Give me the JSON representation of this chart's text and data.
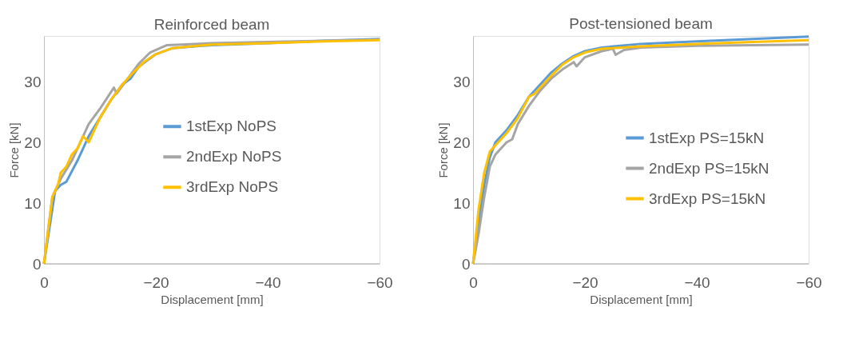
{
  "chart_data": [
    {
      "type": "line",
      "title": "Reinforced beam",
      "xlabel": "Displacement [mm]",
      "ylabel": "Force [kN]",
      "xlim": [
        0,
        -60
      ],
      "xticks": [
        0,
        -20,
        -40,
        -60
      ],
      "ylim": [
        0,
        37.5
      ],
      "yticks": [
        0,
        10,
        20,
        30
      ],
      "grid": false,
      "legend": "center",
      "marker": "none",
      "line_style": "solid",
      "series": [
        {
          "name": "1stExp NoPS",
          "color": "#5b9bd5",
          "x": [
            0,
            -2,
            -3,
            -4,
            -6,
            -8,
            -10,
            -12,
            -14,
            -15.5,
            -17,
            -20,
            -23,
            -30,
            -40,
            -50,
            -60
          ],
          "values": [
            0,
            12,
            13,
            13.5,
            17,
            21,
            24,
            27,
            29.5,
            30.5,
            32.5,
            34.5,
            35.5,
            36,
            36.3,
            36.7,
            37
          ]
        },
        {
          "name": "2ndExp NoPS",
          "color": "#a5a5a5",
          "x": [
            0,
            -1.5,
            -3,
            -5,
            -7,
            -8,
            -10,
            -12.5,
            -13,
            -15,
            -17,
            -19,
            -22,
            -30,
            -40,
            -60
          ],
          "values": [
            0,
            11,
            14,
            17,
            21,
            23,
            25.5,
            29,
            28,
            30.5,
            33,
            34.8,
            36,
            36.3,
            36.5,
            36.9
          ]
        },
        {
          "name": "3rdExp NoPS",
          "color": "#ffc000",
          "x": [
            0,
            -1.5,
            -2.5,
            -3,
            -4,
            -5,
            -6,
            -7,
            -8,
            -10,
            -12,
            -14,
            -16,
            -18,
            -20,
            -23,
            -30,
            -40,
            -50,
            -60
          ],
          "values": [
            0,
            11,
            13,
            15,
            16,
            18,
            19,
            21,
            20,
            24,
            27,
            29.5,
            31.5,
            33.3,
            34.5,
            35.5,
            36.1,
            36.3,
            36.6,
            36.8
          ]
        }
      ]
    },
    {
      "type": "line",
      "title": "Post-tensioned beam",
      "xlabel": "Displacement [mm]",
      "ylabel": "Force [kN]",
      "xlim": [
        0,
        -60
      ],
      "xticks": [
        0,
        -20,
        -40,
        -60
      ],
      "ylim": [
        0,
        37.5
      ],
      "yticks": [
        0,
        10,
        20,
        30
      ],
      "grid": false,
      "legend": "center right",
      "marker": "none",
      "line_style": "solid",
      "series": [
        {
          "name": "1stExp PS=15kN",
          "color": "#5b9bd5",
          "x": [
            0,
            -1,
            -2,
            -3,
            -4,
            -6,
            -8,
            -10,
            -12,
            -14,
            -16,
            -18,
            -20,
            -23,
            -30,
            -40,
            -50,
            -60
          ],
          "values": [
            0,
            7,
            13,
            17.5,
            20,
            22,
            24.5,
            27.5,
            29.5,
            31.5,
            33,
            34.2,
            35,
            35.6,
            36.2,
            36.6,
            37,
            37.4
          ]
        },
        {
          "name": "2ndExp PS=15kN",
          "color": "#a5a5a5",
          "x": [
            0,
            -1,
            -2,
            -3,
            -4,
            -6,
            -7,
            -8,
            -10,
            -12,
            -14,
            -16,
            -18,
            -18.5,
            -20,
            -23,
            -25,
            -25.5,
            -27,
            -30,
            -40,
            -50,
            -60
          ],
          "values": [
            0,
            5,
            11,
            16,
            18,
            20,
            20.5,
            23,
            26,
            28.5,
            30.5,
            32,
            33.2,
            32.5,
            34,
            35,
            35.4,
            34.4,
            35.2,
            35.6,
            35.9,
            36,
            36.1
          ]
        },
        {
          "name": "3rdExp PS=15kN",
          "color": "#ffc000",
          "x": [
            0,
            -1,
            -2,
            -3,
            -4,
            -6,
            -8,
            -10,
            -11,
            -12,
            -14,
            -16,
            -18,
            -20,
            -23,
            -30,
            -40,
            -50,
            -60
          ],
          "values": [
            0,
            9,
            15,
            18.5,
            19.5,
            21.5,
            24,
            27.5,
            28,
            29,
            31,
            32.8,
            34,
            34.8,
            35.4,
            35.8,
            36.2,
            36.5,
            36.8
          ]
        }
      ]
    }
  ]
}
